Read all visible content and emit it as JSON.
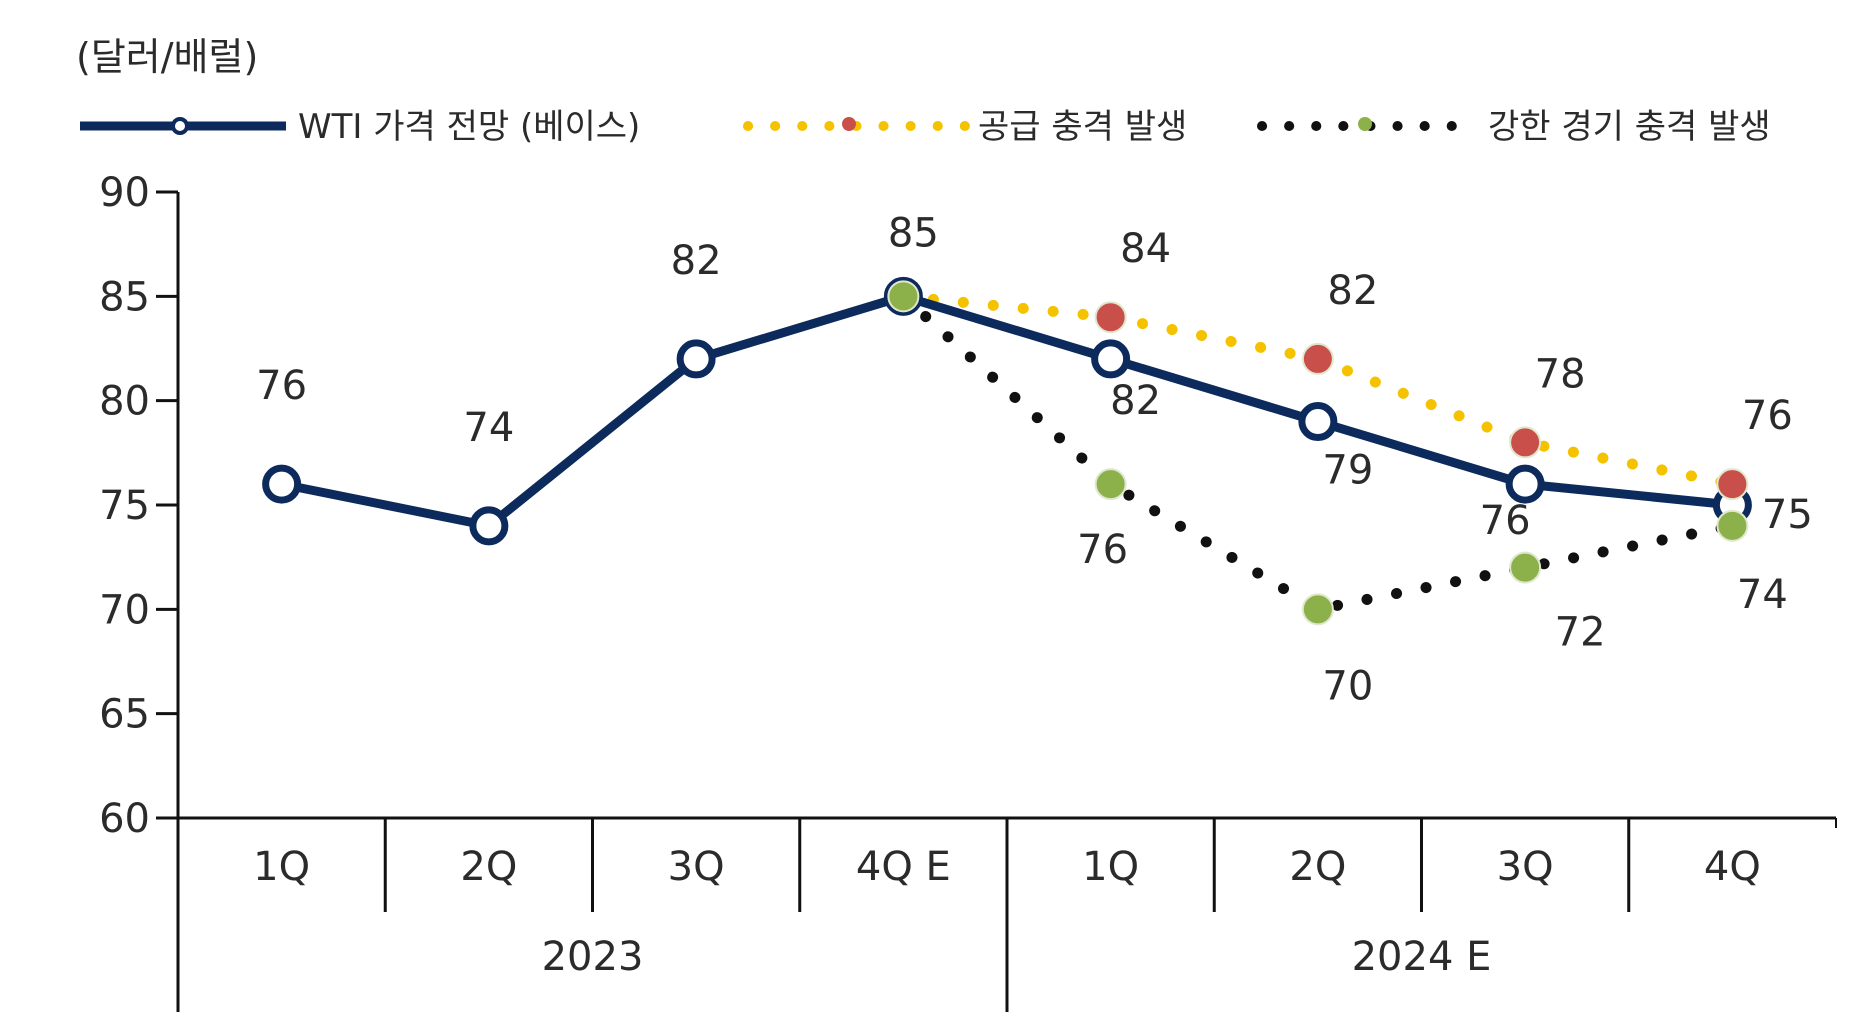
{
  "chart_data": {
    "type": "line",
    "unit_label": "(달러/배럴)",
    "ylim": [
      60,
      90
    ],
    "yticks": [
      90,
      85,
      80,
      75,
      70,
      65,
      60
    ],
    "grid": false,
    "legend_position": "top",
    "categories": [
      "1Q",
      "2Q",
      "3Q",
      "4Q E",
      "1Q",
      "2Q",
      "3Q",
      "4Q"
    ],
    "groups": [
      {
        "label": "2023",
        "start": 0,
        "end": 3
      },
      {
        "label": "2024 E",
        "start": 4,
        "end": 7
      }
    ],
    "series": [
      {
        "name": "WTI 가격 전망 (베이스)",
        "style": "solid-line-hollow-marker",
        "color": "#0d2a5c",
        "values": [
          76,
          74,
          82,
          85,
          82,
          79,
          76,
          75
        ],
        "labels": [
          "76",
          "74",
          "82",
          "85",
          "82",
          "79",
          "76",
          "75"
        ]
      },
      {
        "name": "공급 충격 발생",
        "style": "dotted-line",
        "color": "#f5c200",
        "marker_color": "#c9504a",
        "start_index": 3,
        "values": [
          null,
          null,
          null,
          85,
          84,
          82,
          78,
          76
        ],
        "labels": [
          null,
          null,
          null,
          null,
          "84",
          "82",
          "78",
          "76"
        ]
      },
      {
        "name": "강한 경기 충격 발생",
        "style": "dotted-line",
        "color": "#111111",
        "marker_color": "#8cb04a",
        "start_index": 3,
        "values": [
          null,
          null,
          null,
          85,
          76,
          70,
          72,
          74
        ],
        "labels": [
          null,
          null,
          null,
          null,
          "76",
          "70",
          "72",
          "74"
        ]
      }
    ]
  }
}
